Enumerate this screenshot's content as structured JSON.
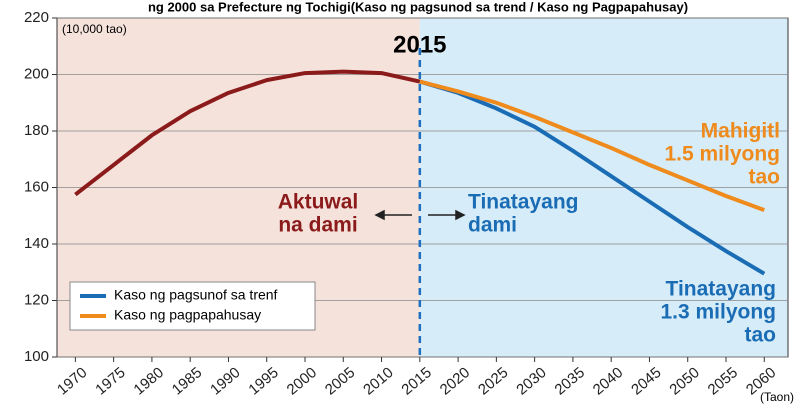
{
  "chart_data": {
    "type": "line",
    "title": "ng 2000 sa Prefecture ng Tochigi(Kaso ng pagsunod sa trend / Kaso ng Pagpapahusay)",
    "y_unit": "(10,000 tao)",
    "x_unit": "(Taon)",
    "xlim": [
      1967.6,
      2063.1
    ],
    "xticks": [
      1970,
      1975,
      1980,
      1985,
      1990,
      1995,
      2000,
      2005,
      2010,
      2015,
      2020,
      2025,
      2030,
      2035,
      2040,
      2045,
      2050,
      2055,
      2060
    ],
    "ylim": [
      100,
      220
    ],
    "yticks": [
      100,
      120,
      140,
      160,
      180,
      200,
      220
    ],
    "divider": 2015,
    "region_colors": [
      "#f5e2db",
      "#d6ecf8"
    ],
    "divider_color": "#1f6fc0",
    "series": [
      {
        "color": "#8b1a1a",
        "x": [
          1970,
          1975,
          1980,
          1985,
          1990,
          1995,
          2000,
          2005,
          2010,
          2015
        ],
        "values": [
          157.5,
          168,
          178.5,
          187,
          193.5,
          198,
          200.5,
          201,
          200.5,
          197.5
        ]
      },
      {
        "name": "Kaso ng pagsunof sa trenf",
        "color": "#1a6cb5",
        "x": [
          2015,
          2020,
          2025,
          2030,
          2035,
          2040,
          2045,
          2050,
          2055,
          2060
        ],
        "values": [
          197.5,
          193.5,
          188,
          181.5,
          173,
          164,
          155,
          146,
          137.5,
          129.5
        ]
      },
      {
        "name": "Kaso ng pagpapahusay",
        "color": "#ef8a1c",
        "x": [
          2015,
          2020,
          2025,
          2030,
          2035,
          2040,
          2045,
          2050,
          2055,
          2060
        ],
        "values": [
          197.5,
          194,
          190,
          185,
          179.5,
          174,
          168,
          162.5,
          157,
          152
        ]
      }
    ],
    "annotations": [
      {
        "lines": [
          "Aktuwal",
          "na dami"
        ],
        "color": "#8b1a1a"
      },
      {
        "lines": [
          "Tinatayang",
          "dami"
        ],
        "color": "#1a6cb5"
      },
      {
        "lines": [
          "Mahigitl",
          "1.5 milyong",
          "tao"
        ],
        "color": "#ef8a1c"
      },
      {
        "lines": [
          "Tinatayang",
          "1.3 milyong",
          "tao"
        ],
        "color": "#1a6cb5"
      }
    ]
  }
}
